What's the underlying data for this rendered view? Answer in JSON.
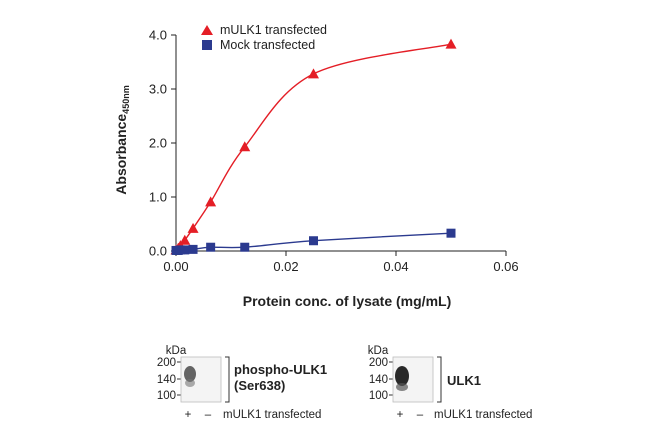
{
  "chart_data": {
    "type": "scatter",
    "xlabel": "Protein conc. of lysate (mg/mL)",
    "ylabel_main": "Absorbance",
    "ylabel_sub": "450nm",
    "xlim": [
      0,
      0.06
    ],
    "ylim": [
      0,
      4.0
    ],
    "x_ticks": [
      0.0,
      0.02,
      0.04,
      0.06
    ],
    "x_tick_labels": [
      "0.00",
      "0.02",
      "0.04",
      "0.06"
    ],
    "y_ticks": [
      0.0,
      1.0,
      2.0,
      3.0,
      4.0
    ],
    "y_tick_labels": [
      "0.0",
      "1.0",
      "2.0",
      "3.0",
      "4.0"
    ],
    "legend_position": "top-left",
    "series": [
      {
        "name": "mULK1 transfected",
        "marker": "triangle",
        "color": "#e41e26",
        "x": [
          0.0,
          0.0004,
          0.0008,
          0.0016,
          0.0031,
          0.0063,
          0.0125,
          0.025,
          0.05
        ],
        "y": [
          0.02,
          0.05,
          0.1,
          0.2,
          0.42,
          0.91,
          1.93,
          3.28,
          3.83
        ]
      },
      {
        "name": "Mock transfected",
        "marker": "square",
        "color": "#2b3a8f",
        "x": [
          0.0,
          0.0004,
          0.0008,
          0.0016,
          0.0031,
          0.0063,
          0.0125,
          0.025,
          0.05
        ],
        "y": [
          0.01,
          0.01,
          0.02,
          0.02,
          0.03,
          0.07,
          0.07,
          0.19,
          0.33
        ]
      }
    ]
  },
  "blots": [
    {
      "kda_label": "kDa",
      "markers": [
        "200",
        "140",
        "100"
      ],
      "protein_line1": "phospho-ULK1",
      "protein_line2": "(Ser638)",
      "lanes_plus": "+",
      "lanes_minus": "–",
      "lanes_caption": "mULK1 transfected"
    },
    {
      "kda_label": "kDa",
      "markers": [
        "200",
        "140",
        "100"
      ],
      "protein_line1": "ULK1",
      "protein_line2": "",
      "lanes_plus": "+",
      "lanes_minus": "–",
      "lanes_caption": "mULK1 transfected"
    }
  ]
}
